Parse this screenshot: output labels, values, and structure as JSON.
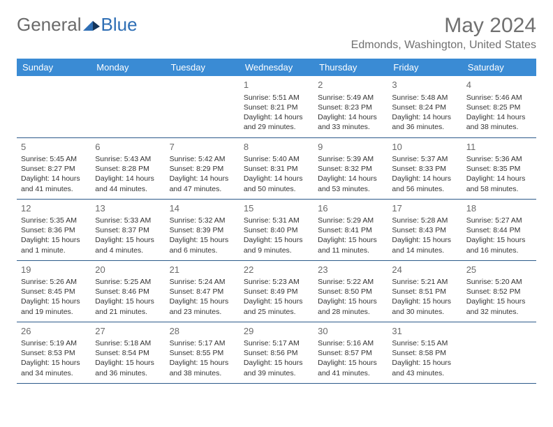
{
  "logo": {
    "general": "General",
    "blue": "Blue"
  },
  "title": "May 2024",
  "location": "Edmonds, Washington, United States",
  "colors": {
    "header_bg": "#3a8bd4",
    "header_text": "#ffffff",
    "border": "#2c5a8a",
    "text": "#333333",
    "muted": "#6a6a6a",
    "title": "#707070",
    "logo_gray": "#6a6a6a",
    "logo_blue": "#2f6fb5"
  },
  "weekdays": [
    "Sunday",
    "Monday",
    "Tuesday",
    "Wednesday",
    "Thursday",
    "Friday",
    "Saturday"
  ],
  "cells": [
    [
      null,
      null,
      null,
      {
        "n": "1",
        "sr": "5:51 AM",
        "ss": "8:21 PM",
        "dl": "14 hours and 29 minutes."
      },
      {
        "n": "2",
        "sr": "5:49 AM",
        "ss": "8:23 PM",
        "dl": "14 hours and 33 minutes."
      },
      {
        "n": "3",
        "sr": "5:48 AM",
        "ss": "8:24 PM",
        "dl": "14 hours and 36 minutes."
      },
      {
        "n": "4",
        "sr": "5:46 AM",
        "ss": "8:25 PM",
        "dl": "14 hours and 38 minutes."
      }
    ],
    [
      {
        "n": "5",
        "sr": "5:45 AM",
        "ss": "8:27 PM",
        "dl": "14 hours and 41 minutes."
      },
      {
        "n": "6",
        "sr": "5:43 AM",
        "ss": "8:28 PM",
        "dl": "14 hours and 44 minutes."
      },
      {
        "n": "7",
        "sr": "5:42 AM",
        "ss": "8:29 PM",
        "dl": "14 hours and 47 minutes."
      },
      {
        "n": "8",
        "sr": "5:40 AM",
        "ss": "8:31 PM",
        "dl": "14 hours and 50 minutes."
      },
      {
        "n": "9",
        "sr": "5:39 AM",
        "ss": "8:32 PM",
        "dl": "14 hours and 53 minutes."
      },
      {
        "n": "10",
        "sr": "5:37 AM",
        "ss": "8:33 PM",
        "dl": "14 hours and 56 minutes."
      },
      {
        "n": "11",
        "sr": "5:36 AM",
        "ss": "8:35 PM",
        "dl": "14 hours and 58 minutes."
      }
    ],
    [
      {
        "n": "12",
        "sr": "5:35 AM",
        "ss": "8:36 PM",
        "dl": "15 hours and 1 minute."
      },
      {
        "n": "13",
        "sr": "5:33 AM",
        "ss": "8:37 PM",
        "dl": "15 hours and 4 minutes."
      },
      {
        "n": "14",
        "sr": "5:32 AM",
        "ss": "8:39 PM",
        "dl": "15 hours and 6 minutes."
      },
      {
        "n": "15",
        "sr": "5:31 AM",
        "ss": "8:40 PM",
        "dl": "15 hours and 9 minutes."
      },
      {
        "n": "16",
        "sr": "5:29 AM",
        "ss": "8:41 PM",
        "dl": "15 hours and 11 minutes."
      },
      {
        "n": "17",
        "sr": "5:28 AM",
        "ss": "8:43 PM",
        "dl": "15 hours and 14 minutes."
      },
      {
        "n": "18",
        "sr": "5:27 AM",
        "ss": "8:44 PM",
        "dl": "15 hours and 16 minutes."
      }
    ],
    [
      {
        "n": "19",
        "sr": "5:26 AM",
        "ss": "8:45 PM",
        "dl": "15 hours and 19 minutes."
      },
      {
        "n": "20",
        "sr": "5:25 AM",
        "ss": "8:46 PM",
        "dl": "15 hours and 21 minutes."
      },
      {
        "n": "21",
        "sr": "5:24 AM",
        "ss": "8:47 PM",
        "dl": "15 hours and 23 minutes."
      },
      {
        "n": "22",
        "sr": "5:23 AM",
        "ss": "8:49 PM",
        "dl": "15 hours and 25 minutes."
      },
      {
        "n": "23",
        "sr": "5:22 AM",
        "ss": "8:50 PM",
        "dl": "15 hours and 28 minutes."
      },
      {
        "n": "24",
        "sr": "5:21 AM",
        "ss": "8:51 PM",
        "dl": "15 hours and 30 minutes."
      },
      {
        "n": "25",
        "sr": "5:20 AM",
        "ss": "8:52 PM",
        "dl": "15 hours and 32 minutes."
      }
    ],
    [
      {
        "n": "26",
        "sr": "5:19 AM",
        "ss": "8:53 PM",
        "dl": "15 hours and 34 minutes."
      },
      {
        "n": "27",
        "sr": "5:18 AM",
        "ss": "8:54 PM",
        "dl": "15 hours and 36 minutes."
      },
      {
        "n": "28",
        "sr": "5:17 AM",
        "ss": "8:55 PM",
        "dl": "15 hours and 38 minutes."
      },
      {
        "n": "29",
        "sr": "5:17 AM",
        "ss": "8:56 PM",
        "dl": "15 hours and 39 minutes."
      },
      {
        "n": "30",
        "sr": "5:16 AM",
        "ss": "8:57 PM",
        "dl": "15 hours and 41 minutes."
      },
      {
        "n": "31",
        "sr": "5:15 AM",
        "ss": "8:58 PM",
        "dl": "15 hours and 43 minutes."
      },
      null
    ]
  ],
  "labels": {
    "sunrise": "Sunrise:",
    "sunset": "Sunset:",
    "daylight": "Daylight:"
  }
}
